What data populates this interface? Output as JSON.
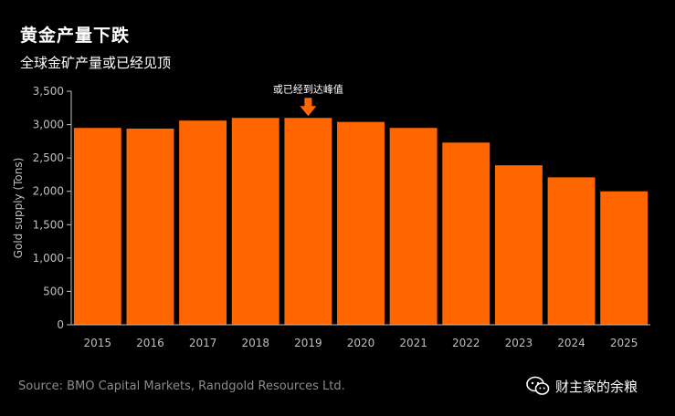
{
  "header": {
    "title": "黄金产量下跌",
    "subtitle": "全球金矿产量或已经见顶"
  },
  "footer": {
    "source": "Source: BMO Capital Markets, Randgold Resources Ltd.",
    "watermark": "财主家的余粮",
    "watermark_icon": "wechat-icon"
  },
  "colors": {
    "background": "#000000",
    "bar": "#ff6600",
    "annotation_arrow": "#ff6600",
    "axis_text": "#bfbfbf"
  },
  "chart_data": {
    "type": "bar",
    "title": "黄金产量下跌",
    "subtitle": "全球金矿产量或已经见顶",
    "xlabel": "",
    "ylabel": "Gold supply (Tons)",
    "ylim": [
      0,
      3500
    ],
    "yticks": [
      0,
      500,
      1000,
      1500,
      2000,
      2500,
      3000,
      3500
    ],
    "ytick_labels": [
      "0",
      "500",
      "1,000",
      "1,500",
      "2,000",
      "2,500",
      "3,000",
      "3,500"
    ],
    "categories": [
      "2015",
      "2016",
      "2017",
      "2018",
      "2019",
      "2020",
      "2021",
      "2022",
      "2023",
      "2024",
      "2025"
    ],
    "values": [
      2950,
      2940,
      3060,
      3100,
      3100,
      3040,
      2950,
      2730,
      2390,
      2210,
      2000
    ],
    "grid": false,
    "annotation": {
      "text": "或已经到达峰值",
      "category": "2019"
    }
  }
}
